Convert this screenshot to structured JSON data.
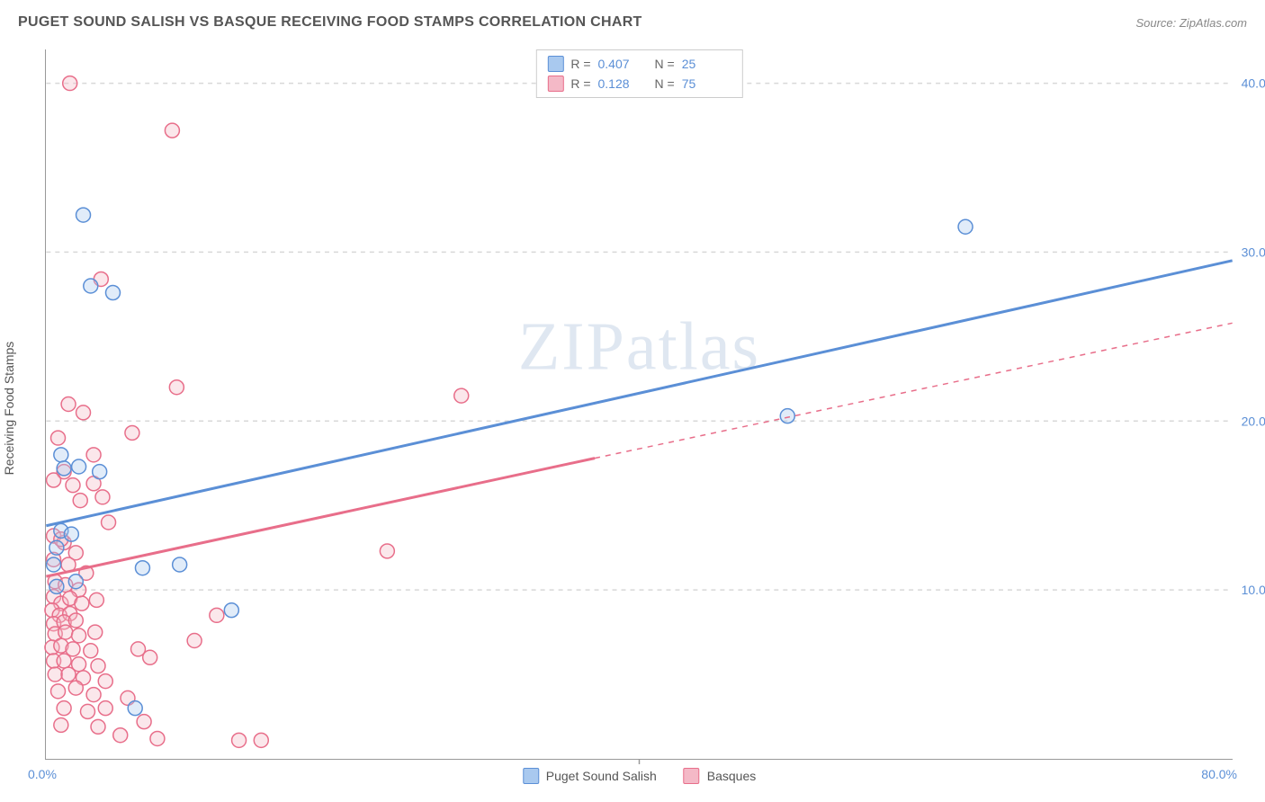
{
  "header": {
    "title": "PUGET SOUND SALISH VS BASQUE RECEIVING FOOD STAMPS CORRELATION CHART",
    "source": "Source: ZipAtlas.com"
  },
  "watermark": "ZIPatlas",
  "axes": {
    "ylabel": "Receiving Food Stamps",
    "xlim": [
      0,
      80
    ],
    "ylim": [
      0,
      42
    ],
    "x_ticks": [
      {
        "v": 0,
        "label": "0.0%"
      },
      {
        "v": 80,
        "label": "80.0%"
      }
    ],
    "y_ticks": [
      {
        "v": 10,
        "label": "10.0%"
      },
      {
        "v": 20,
        "label": "20.0%"
      },
      {
        "v": 30,
        "label": "30.0%"
      },
      {
        "v": 40,
        "label": "40.0%"
      }
    ],
    "grid_color": "#d8d8d8",
    "axis_color": "#999999",
    "tick_label_color": "#5b8fd6",
    "label_fontsize": 14
  },
  "series": {
    "salish": {
      "name": "Puget Sound Salish",
      "color_fill": "#a9c9ef",
      "color_stroke": "#5b8fd6",
      "R": "0.407",
      "N": "25",
      "marker_radius": 8,
      "trend_solid": {
        "x1": 0,
        "y1": 13.8,
        "x2": 80,
        "y2": 29.5
      },
      "trend_dash": null,
      "points": [
        [
          2.5,
          32.2
        ],
        [
          3.0,
          28.0
        ],
        [
          4.5,
          27.6
        ],
        [
          1.0,
          18.0
        ],
        [
          1.2,
          17.2
        ],
        [
          2.2,
          17.3
        ],
        [
          3.6,
          17.0
        ],
        [
          1.0,
          13.5
        ],
        [
          1.7,
          13.3
        ],
        [
          0.7,
          12.5
        ],
        [
          0.5,
          11.5
        ],
        [
          2.0,
          10.5
        ],
        [
          6.5,
          11.3
        ],
        [
          9.0,
          11.5
        ],
        [
          0.7,
          10.2
        ],
        [
          12.5,
          8.8
        ],
        [
          6.0,
          3.0
        ],
        [
          62.0,
          31.5
        ],
        [
          50.0,
          20.3
        ]
      ]
    },
    "basques": {
      "name": "Basques",
      "color_fill": "#f4b9c7",
      "color_stroke": "#e86e8a",
      "R": "0.128",
      "N": "75",
      "marker_radius": 8,
      "trend_solid": {
        "x1": 0,
        "y1": 10.8,
        "x2": 37,
        "y2": 17.8
      },
      "trend_dash": {
        "x1": 37,
        "y1": 17.8,
        "x2": 80,
        "y2": 25.8
      },
      "points": [
        [
          1.6,
          40.0
        ],
        [
          8.5,
          37.2
        ],
        [
          3.7,
          28.4
        ],
        [
          8.8,
          22.0
        ],
        [
          28.0,
          21.5
        ],
        [
          1.5,
          21.0
        ],
        [
          2.5,
          20.5
        ],
        [
          5.8,
          19.3
        ],
        [
          0.8,
          19.0
        ],
        [
          3.2,
          18.0
        ],
        [
          1.2,
          17.0
        ],
        [
          0.5,
          16.5
        ],
        [
          1.8,
          16.2
        ],
        [
          3.2,
          16.3
        ],
        [
          2.3,
          15.3
        ],
        [
          3.8,
          15.5
        ],
        [
          4.2,
          14.0
        ],
        [
          0.5,
          13.2
        ],
        [
          1.2,
          12.8
        ],
        [
          2.0,
          12.2
        ],
        [
          23.0,
          12.3
        ],
        [
          0.5,
          11.8
        ],
        [
          1.5,
          11.5
        ],
        [
          1.0,
          13.0
        ],
        [
          2.7,
          11.0
        ],
        [
          0.6,
          10.5
        ],
        [
          1.3,
          10.3
        ],
        [
          2.2,
          10.0
        ],
        [
          0.5,
          9.6
        ],
        [
          1.0,
          9.2
        ],
        [
          1.6,
          9.5
        ],
        [
          2.4,
          9.2
        ],
        [
          3.4,
          9.4
        ],
        [
          0.4,
          8.8
        ],
        [
          0.9,
          8.5
        ],
        [
          1.6,
          8.6
        ],
        [
          0.5,
          8.0
        ],
        [
          1.2,
          8.1
        ],
        [
          2.0,
          8.2
        ],
        [
          0.6,
          7.4
        ],
        [
          1.3,
          7.5
        ],
        [
          2.2,
          7.3
        ],
        [
          3.3,
          7.5
        ],
        [
          0.4,
          6.6
        ],
        [
          1.0,
          6.7
        ],
        [
          1.8,
          6.5
        ],
        [
          3.0,
          6.4
        ],
        [
          6.2,
          6.5
        ],
        [
          7.0,
          6.0
        ],
        [
          0.5,
          5.8
        ],
        [
          1.2,
          5.8
        ],
        [
          2.2,
          5.6
        ],
        [
          3.5,
          5.5
        ],
        [
          0.6,
          5.0
        ],
        [
          1.5,
          5.0
        ],
        [
          2.5,
          4.8
        ],
        [
          4.0,
          4.6
        ],
        [
          0.8,
          4.0
        ],
        [
          2.0,
          4.2
        ],
        [
          3.2,
          3.8
        ],
        [
          5.5,
          3.6
        ],
        [
          1.2,
          3.0
        ],
        [
          2.8,
          2.8
        ],
        [
          4.0,
          3.0
        ],
        [
          6.6,
          2.2
        ],
        [
          1.0,
          2.0
        ],
        [
          3.5,
          1.9
        ],
        [
          5.0,
          1.4
        ],
        [
          7.5,
          1.2
        ],
        [
          13.0,
          1.1
        ],
        [
          14.5,
          1.1
        ],
        [
          10.0,
          7.0
        ],
        [
          11.5,
          8.5
        ]
      ]
    }
  },
  "legend_top": {
    "r_label": "R =",
    "n_label": "N ="
  },
  "legend_bottom": {
    "items": [
      "salish",
      "basques"
    ]
  },
  "colors": {
    "background": "#ffffff",
    "text": "#555555",
    "value_text": "#5b8fd6"
  }
}
